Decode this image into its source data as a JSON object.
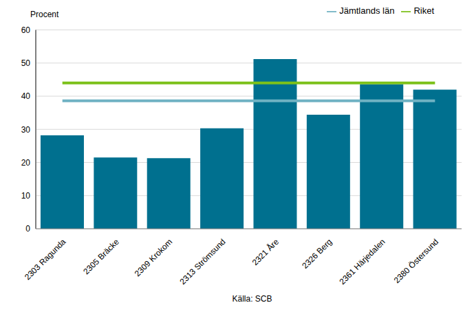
{
  "chart_data": {
    "type": "bar",
    "ylabel": "Procent",
    "annotations": [
      "Källa: SCB"
    ],
    "categories": [
      "2303 Ragunda",
      "2305 Bräcke",
      "2309 Krokom",
      "2313 Strömsund",
      "2321 Åre",
      "2326 Berg",
      "2361 Härjedalen",
      "2380 Östersund"
    ],
    "values": [
      28.2,
      21.5,
      21.3,
      30.3,
      51.2,
      34.4,
      43.6,
      42.0
    ],
    "color": "#00708f",
    "series": [
      {
        "name": "Jämtlands län",
        "type": "line",
        "color": "#6fb2c3",
        "values": [
          38.6,
          38.6,
          38.6,
          38.6,
          38.6,
          38.6,
          38.6,
          38.6
        ]
      },
      {
        "name": "Riket",
        "type": "line",
        "color": "#7cc11a",
        "values": [
          44.0,
          44.0,
          44.0,
          44.0,
          44.0,
          44.0,
          44.0,
          44.0
        ]
      }
    ],
    "ylim": [
      0,
      60
    ],
    "yticks": [
      0,
      10,
      20,
      30,
      40,
      50,
      60
    ],
    "grid": true,
    "legend": "top"
  }
}
